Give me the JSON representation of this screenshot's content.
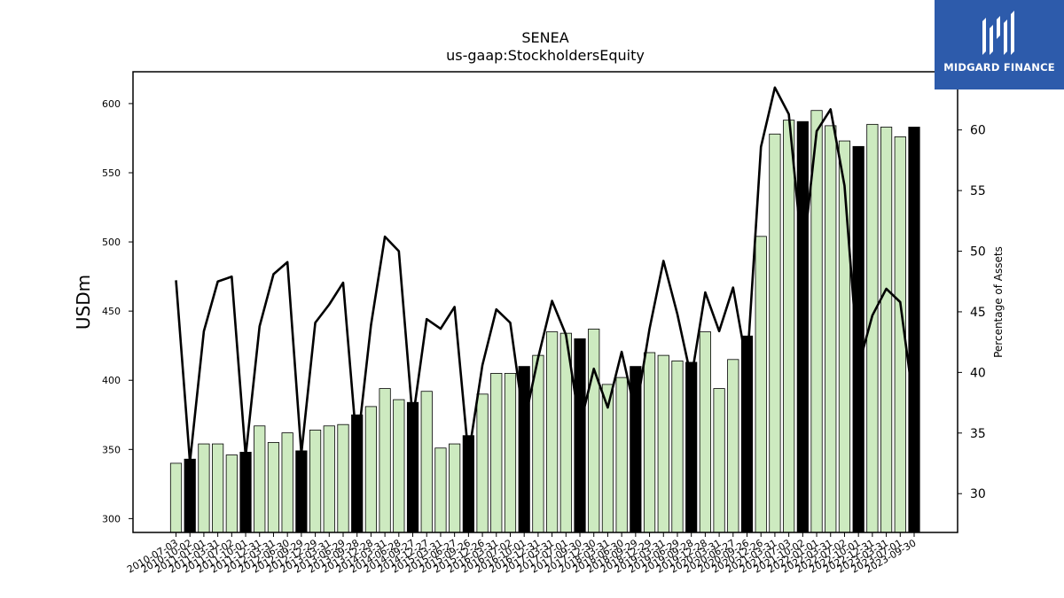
{
  "chart_data": {
    "type": "bar",
    "title": "SENEA",
    "subtitle": "us-gaap:StockholdersEquity",
    "ylabel": "USDm",
    "y2label": "Percentage of Assets",
    "ylim": [
      290,
      623
    ],
    "y2lim": [
      26.8,
      64.8
    ],
    "yticks": [
      300,
      350,
      400,
      450,
      500,
      550,
      600
    ],
    "y2ticks": [
      30,
      35,
      40,
      45,
      50,
      55,
      60
    ],
    "grid": false,
    "colors": {
      "bar_light": "#cdeac0",
      "bar_dark": "#000000",
      "line": "#000000"
    },
    "categories": [
      "2010-07-03",
      "2010-10-02",
      "2011-01-01",
      "2011-03-31",
      "2011-07-02",
      "2011-10-01",
      "2011-12-31",
      "2012-03-31",
      "2012-06-30",
      "2012-09-29",
      "2012-12-29",
      "2013-03-31",
      "2013-06-29",
      "2013-09-28",
      "2013-12-28",
      "2014-03-31",
      "2014-06-28",
      "2014-09-27",
      "2014-12-27",
      "2015-03-31",
      "2015-06-27",
      "2015-09-26",
      "2015-12-26",
      "2016-03-31",
      "2016-07-02",
      "2016-10-01",
      "2016-12-31",
      "2017-03-31",
      "2017-07-01",
      "2017-09-30",
      "2017-12-30",
      "2018-03-31",
      "2018-06-30",
      "2018-09-29",
      "2018-12-29",
      "2019-03-31",
      "2019-06-29",
      "2019-09-28",
      "2019-12-28",
      "2020-03-31",
      "2020-06-27",
      "2020-09-26",
      "2020-12-26",
      "2021-03-31",
      "2021-07-03",
      "2021-10-02",
      "2022-01-01",
      "2022-03-31",
      "2022-07-02",
      "2022-10-01",
      "2022-12-31",
      "2023-03-31",
      "2023-07-01",
      "2023-09-30"
    ],
    "tick_labels": [
      "2010-07-03",
      "2010-10-02",
      "2011-01-01",
      "2011-03-31",
      "2011-07-02",
      "2011-10-01",
      "2011-12-31",
      "2012-03-31",
      "2012-06-30",
      "2012-09-29",
      "2012-12-29",
      "2013-03-31",
      "2013-06-29",
      "2013-09-28",
      "2013-12-28",
      "2014-03-31",
      "2014-06-28",
      "2014-09-27",
      "2014-12-27",
      "2015-03-31",
      "2015-06-27",
      "2015-09-26",
      "2015-12-26",
      "2016-03-31",
      "2016-07-02",
      "2016-10-01",
      "2016-12-31",
      "2017-03-31",
      "2017-07-01",
      "2017-09-30",
      "2017-12-30",
      "2018-03-31",
      "2018-06-30",
      "2018-09-29",
      "2018-12-29",
      "2019-03-31",
      "2019-06-29",
      "2019-09-28",
      "2019-12-28",
      "2020-03-31",
      "2020-06-27",
      "2020-09-26",
      "2020-12-26",
      "2021-03-31",
      "2021-07-03",
      "2021-10-02",
      "2022-01-01",
      "2022-03-31",
      "2022-07-02",
      "2022-10-01",
      "2022-12-31",
      "2023-03-31",
      "2023-07-01",
      "2023-09-30"
    ],
    "series": [
      {
        "type": "bar",
        "values": [
          340,
          343,
          354,
          354,
          346,
          348,
          367,
          355,
          362,
          349,
          364,
          367,
          368,
          375,
          381,
          394,
          386,
          384,
          392,
          351,
          354,
          360,
          390,
          405,
          405,
          410,
          418,
          435,
          434,
          430,
          437,
          397,
          402,
          410,
          420,
          418,
          414,
          413,
          435,
          394,
          415,
          432,
          504,
          578,
          588,
          587,
          595,
          584,
          573,
          569,
          585,
          583,
          576,
          583
        ]
      },
      {
        "type": "line",
        "axis": "right",
        "values": [
          47.6,
          32.6,
          43.4,
          47.5,
          47.9,
          33.1,
          43.8,
          48.1,
          49.1,
          33.3,
          44.1,
          45.6,
          47.4,
          33.7,
          43.9,
          51.2,
          50.0,
          36.1,
          44.4,
          43.6,
          45.4,
          33.1,
          40.6,
          45.2,
          44.1,
          35.8,
          41.2,
          45.9,
          43.1,
          35.6,
          40.3,
          37.1,
          41.7,
          36.6,
          43.6,
          49.2,
          44.8,
          39.5,
          46.6,
          43.4,
          47.0,
          40.5,
          58.6,
          63.5,
          61.3,
          49.4,
          59.9,
          61.7,
          55.4,
          40.5,
          44.7,
          46.9,
          45.8,
          37.1
        ]
      }
    ]
  },
  "logo": {
    "text": "MIDGARD FINANCE"
  }
}
